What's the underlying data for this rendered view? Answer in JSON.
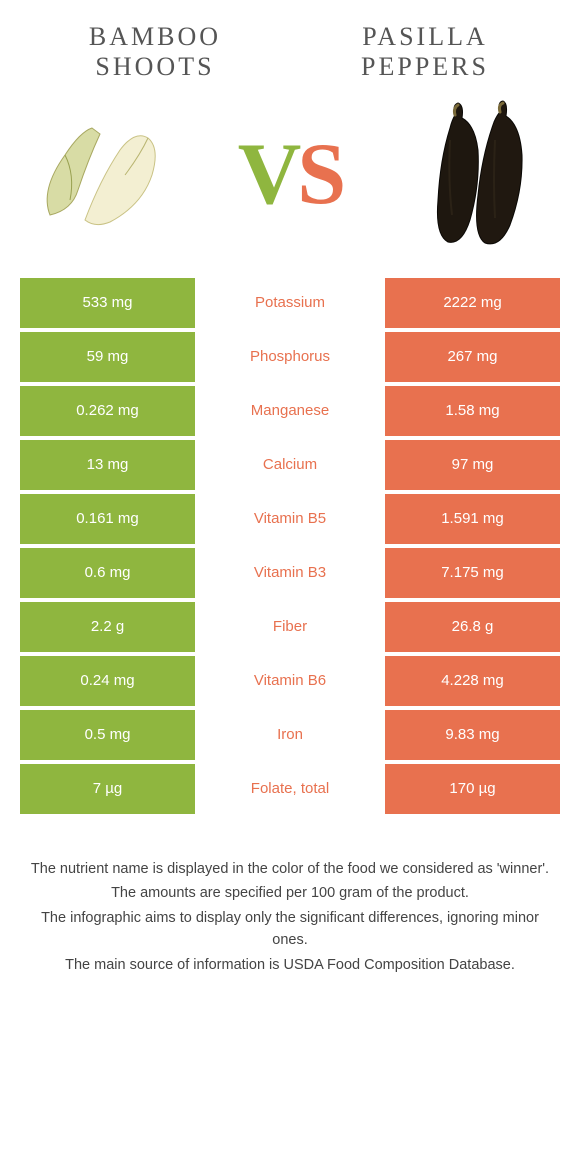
{
  "colors": {
    "left": "#8fb63f",
    "right": "#e8714f",
    "title_text": "#555555",
    "body_text": "#444444",
    "background": "#ffffff"
  },
  "left_food": {
    "title_line1": "BAMBOO",
    "title_line2": "SHOOTS"
  },
  "right_food": {
    "title_line1": "PASILLA",
    "title_line2": "PEPPERS"
  },
  "vs": {
    "v": "V",
    "s": "S"
  },
  "nutrients": [
    {
      "label": "Potassium",
      "left": "533 mg",
      "right": "2222 mg",
      "winner": "right"
    },
    {
      "label": "Phosphorus",
      "left": "59 mg",
      "right": "267 mg",
      "winner": "right"
    },
    {
      "label": "Manganese",
      "left": "0.262 mg",
      "right": "1.58 mg",
      "winner": "right"
    },
    {
      "label": "Calcium",
      "left": "13 mg",
      "right": "97 mg",
      "winner": "right"
    },
    {
      "label": "Vitamin B5",
      "left": "0.161 mg",
      "right": "1.591 mg",
      "winner": "right"
    },
    {
      "label": "Vitamin B3",
      "left": "0.6 mg",
      "right": "7.175 mg",
      "winner": "right"
    },
    {
      "label": "Fiber",
      "left": "2.2 g",
      "right": "26.8 g",
      "winner": "right"
    },
    {
      "label": "Vitamin B6",
      "left": "0.24 mg",
      "right": "4.228 mg",
      "winner": "right"
    },
    {
      "label": "Iron",
      "left": "0.5 mg",
      "right": "9.83 mg",
      "winner": "right"
    },
    {
      "label": "Folate, total",
      "left": "7 µg",
      "right": "170 µg",
      "winner": "right"
    }
  ],
  "footnotes": [
    "The nutrient name is displayed in the color of the food we considered as 'winner'.",
    "The amounts are specified per 100 gram of the product.",
    "The infographic aims to display only the significant differences, ignoring minor ones.",
    "The main source of information is USDA Food Composition Database."
  ]
}
